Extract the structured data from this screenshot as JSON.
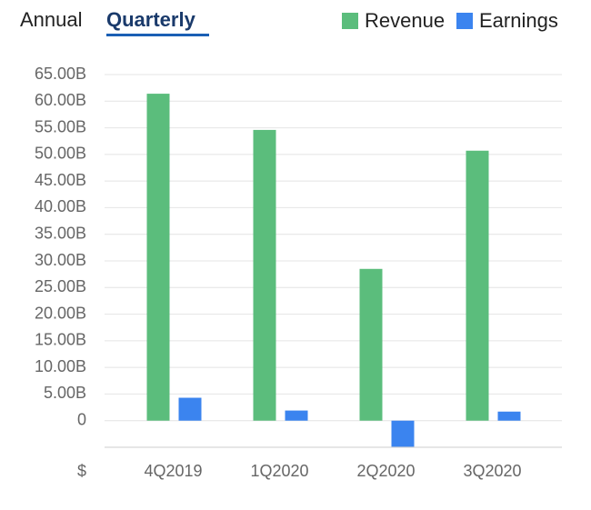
{
  "tabs": [
    "Annual",
    "Quarterly"
  ],
  "chart_data": {
    "type": "bar",
    "categories": [
      "4Q2019",
      "1Q2020",
      "2Q2020",
      "3Q2020"
    ],
    "series": [
      {
        "name": "Revenue",
        "color": "#5bbd7c",
        "values": [
          61.4,
          54.6,
          28.5,
          50.7
        ]
      },
      {
        "name": "Earnings",
        "color": "#3b84ef",
        "values": [
          4.3,
          1.9,
          -4.9,
          1.7
        ]
      }
    ],
    "unit_label": "$",
    "ylim": [
      -5,
      65
    ],
    "yticks": [
      {
        "value": 65,
        "label": "65.00B"
      },
      {
        "value": 60,
        "label": "60.00B"
      },
      {
        "value": 55,
        "label": "55.00B"
      },
      {
        "value": 50,
        "label": "50.00B"
      },
      {
        "value": 45,
        "label": "45.00B"
      },
      {
        "value": 40,
        "label": "40.00B"
      },
      {
        "value": 35,
        "label": "35.00B"
      },
      {
        "value": 30,
        "label": "30.00B"
      },
      {
        "value": 25,
        "label": "25.00B"
      },
      {
        "value": 20,
        "label": "20.00B"
      },
      {
        "value": 15,
        "label": "15.00B"
      },
      {
        "value": 10,
        "label": "10.00B"
      },
      {
        "value": 5,
        "label": "5.00B"
      },
      0
    ],
    "grid": true
  }
}
